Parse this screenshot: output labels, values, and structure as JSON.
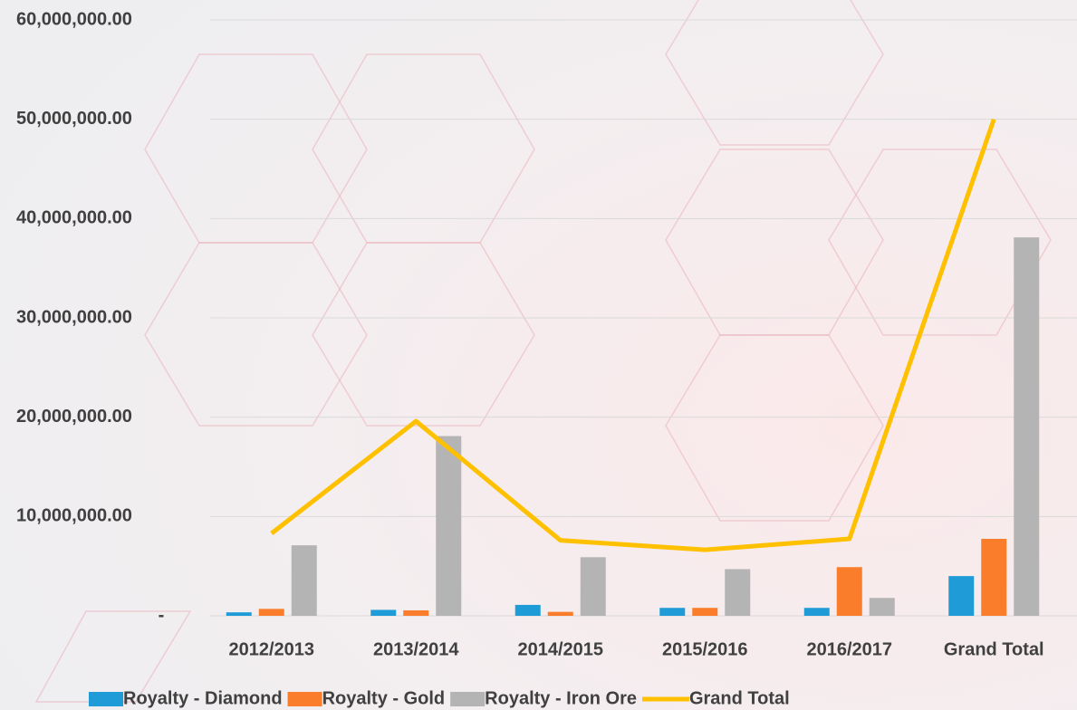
{
  "chart_data": {
    "type": "bar-line",
    "categories": [
      "2012/2013",
      "2013/2014",
      "2014/2015",
      "2015/2016",
      "2016/2017",
      "Grand Total"
    ],
    "series": [
      {
        "name": "Royalty - Diamond",
        "type": "bar",
        "color": "#1f9bd7",
        "values": [
          350000,
          600000,
          1100000,
          800000,
          800000,
          4000000
        ]
      },
      {
        "name": "Royalty - Gold",
        "type": "bar",
        "color": "#f97d2a",
        "values": [
          700000,
          550000,
          400000,
          800000,
          4900000,
          7750000
        ]
      },
      {
        "name": "Royalty - Iron Ore",
        "type": "bar",
        "color": "#b4b4b4",
        "values": [
          7100000,
          18100000,
          5900000,
          4700000,
          1800000,
          38100000
        ]
      },
      {
        "name": "Grand Total",
        "type": "line",
        "color": "#ffc000",
        "values": [
          8300000,
          19600000,
          7600000,
          6650000,
          7750000,
          50000000
        ]
      }
    ],
    "ylim": [
      0,
      60000000
    ],
    "yticks": [
      {
        "value": 0,
        "label": "-"
      },
      {
        "value": 10000000,
        "label": "10,000,000.00"
      },
      {
        "value": 20000000,
        "label": "20,000,000.00"
      },
      {
        "value": 30000000,
        "label": "30,000,000.00"
      },
      {
        "value": 40000000,
        "label": "40,000,000.00"
      },
      {
        "value": 50000000,
        "label": "50,000,000.00"
      },
      {
        "value": 60000000,
        "label": "60,000,000.00"
      }
    ],
    "grid": true,
    "legend": "bottom"
  }
}
